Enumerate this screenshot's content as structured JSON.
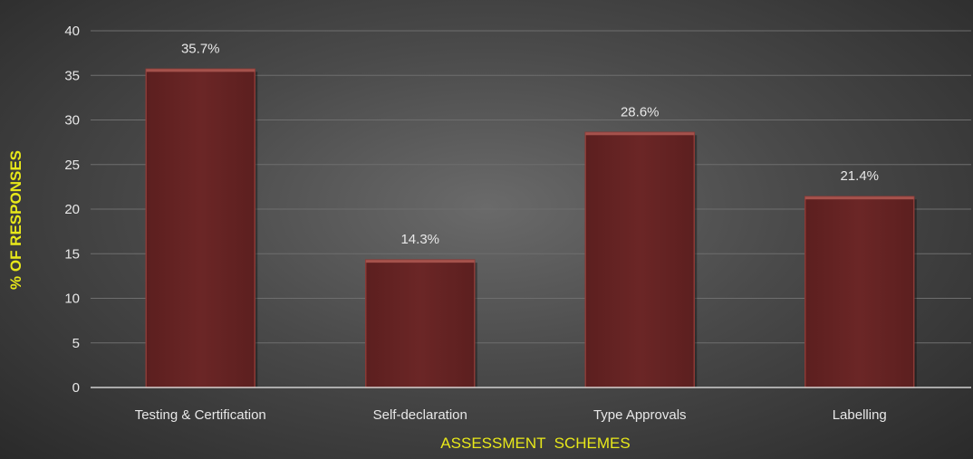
{
  "chart_data": {
    "type": "bar",
    "categories": [
      "Testing & Certification",
      "Self-declaration",
      "Type Approvals",
      "Labelling"
    ],
    "values": [
      35.7,
      14.3,
      28.6,
      21.4
    ],
    "data_labels": [
      "35.7%",
      "14.3%",
      "28.6%",
      "21.4%"
    ],
    "title": "",
    "xlabel": "ASSESSMENT  SCHEMES",
    "ylabel": "% OF RESPONSES",
    "ylim": [
      0,
      40
    ],
    "yticks": [
      0,
      5,
      10,
      15,
      20,
      25,
      30,
      35,
      40
    ],
    "grid": true,
    "legend": "none",
    "colors": {
      "bar": "#6b2626",
      "bar_edge": "#8a3a36",
      "axis_title": "#e8e81a",
      "text": "#e8e8e8",
      "grid": "#6e6e6e"
    }
  }
}
